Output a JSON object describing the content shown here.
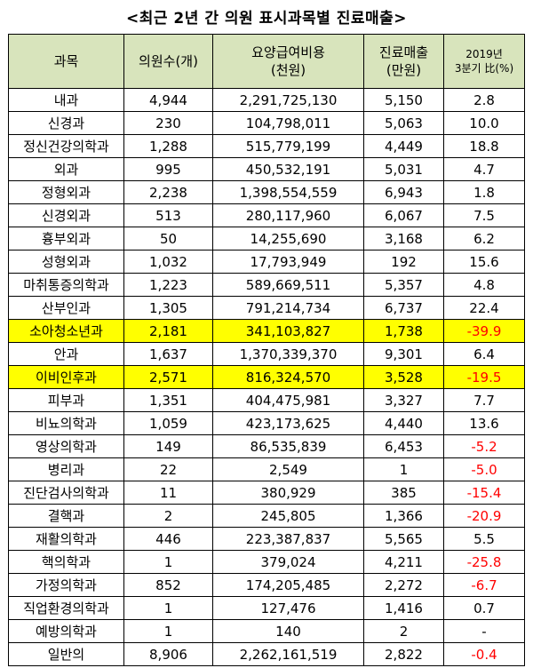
{
  "title": "<최근 2년 간 의원 표시과목별 진료매출>",
  "headers": {
    "dept": "과목",
    "clinics": "의원수(개)",
    "benefit_line1": "요양급여비용",
    "benefit_line2": "(천원)",
    "revenue_line1": "진료매출",
    "revenue_line2": "(만원)",
    "ratio_line1": "2019년",
    "ratio_line2": "3분기 比(%)"
  },
  "rows": [
    {
      "dept": "내과",
      "clinics": "4,944",
      "benefit": "2,291,725,130",
      "revenue": "5,150",
      "ratio": "2.8",
      "neg": false,
      "hl": false
    },
    {
      "dept": "신경과",
      "clinics": "230",
      "benefit": "104,798,011",
      "revenue": "5,063",
      "ratio": "10.0",
      "neg": false,
      "hl": false
    },
    {
      "dept": "정신건강의학과",
      "clinics": "1,288",
      "benefit": "515,779,199",
      "revenue": "4,449",
      "ratio": "18.8",
      "neg": false,
      "hl": false
    },
    {
      "dept": "외과",
      "clinics": "995",
      "benefit": "450,532,191",
      "revenue": "5,031",
      "ratio": "4.7",
      "neg": false,
      "hl": false
    },
    {
      "dept": "정형외과",
      "clinics": "2,238",
      "benefit": "1,398,554,559",
      "revenue": "6,943",
      "ratio": "1.8",
      "neg": false,
      "hl": false
    },
    {
      "dept": "신경외과",
      "clinics": "513",
      "benefit": "280,117,960",
      "revenue": "6,067",
      "ratio": "7.5",
      "neg": false,
      "hl": false
    },
    {
      "dept": "흉부외과",
      "clinics": "50",
      "benefit": "14,255,690",
      "revenue": "3,168",
      "ratio": "6.2",
      "neg": false,
      "hl": false
    },
    {
      "dept": "성형외과",
      "clinics": "1,032",
      "benefit": "17,793,949",
      "revenue": "192",
      "ratio": "15.6",
      "neg": false,
      "hl": false
    },
    {
      "dept": "마취통증의학과",
      "clinics": "1,223",
      "benefit": "589,669,511",
      "revenue": "5,357",
      "ratio": "4.8",
      "neg": false,
      "hl": false
    },
    {
      "dept": "산부인과",
      "clinics": "1,305",
      "benefit": "791,214,734",
      "revenue": "6,737",
      "ratio": "22.4",
      "neg": false,
      "hl": false
    },
    {
      "dept": "소아청소년과",
      "clinics": "2,181",
      "benefit": "341,103,827",
      "revenue": "1,738",
      "ratio": "-39.9",
      "neg": true,
      "hl": true
    },
    {
      "dept": "안과",
      "clinics": "1,637",
      "benefit": "1,370,339,370",
      "revenue": "9,301",
      "ratio": "6.4",
      "neg": false,
      "hl": false
    },
    {
      "dept": "이비인후과",
      "clinics": "2,571",
      "benefit": "816,324,570",
      "revenue": "3,528",
      "ratio": "-19.5",
      "neg": true,
      "hl": true
    },
    {
      "dept": "피부과",
      "clinics": "1,351",
      "benefit": "404,475,981",
      "revenue": "3,327",
      "ratio": "7.7",
      "neg": false,
      "hl": false
    },
    {
      "dept": "비뇨의학과",
      "clinics": "1,059",
      "benefit": "423,173,625",
      "revenue": "4,440",
      "ratio": "13.6",
      "neg": false,
      "hl": false
    },
    {
      "dept": "영상의학과",
      "clinics": "149",
      "benefit": "86,535,839",
      "revenue": "6,453",
      "ratio": "-5.2",
      "neg": true,
      "hl": false
    },
    {
      "dept": "병리과",
      "clinics": "22",
      "benefit": "2,549",
      "revenue": "1",
      "ratio": "-5.0",
      "neg": true,
      "hl": false
    },
    {
      "dept": "진단검사의학과",
      "clinics": "11",
      "benefit": "380,929",
      "revenue": "385",
      "ratio": "-15.4",
      "neg": true,
      "hl": false
    },
    {
      "dept": "결핵과",
      "clinics": "2",
      "benefit": "245,805",
      "revenue": "1,366",
      "ratio": "-20.9",
      "neg": true,
      "hl": false
    },
    {
      "dept": "재활의학과",
      "clinics": "446",
      "benefit": "223,387,837",
      "revenue": "5,565",
      "ratio": "5.5",
      "neg": false,
      "hl": false
    },
    {
      "dept": "핵의학과",
      "clinics": "1",
      "benefit": "379,024",
      "revenue": "4,211",
      "ratio": "-25.8",
      "neg": true,
      "hl": false
    },
    {
      "dept": "가정의학과",
      "clinics": "852",
      "benefit": "174,205,485",
      "revenue": "2,272",
      "ratio": "-6.7",
      "neg": true,
      "hl": false
    },
    {
      "dept": "직업환경의학과",
      "clinics": "1",
      "benefit": "127,476",
      "revenue": "1,416",
      "ratio": "0.7",
      "neg": false,
      "hl": false
    },
    {
      "dept": "예방의학과",
      "clinics": "1",
      "benefit": "140",
      "revenue": "2",
      "ratio": "-",
      "neg": false,
      "hl": false
    },
    {
      "dept": "일반의",
      "clinics": "8,906",
      "benefit": "2,262,161,519",
      "revenue": "2,822",
      "ratio": "-0.4",
      "neg": true,
      "hl": false
    }
  ],
  "colors": {
    "header_bg": "#d8e4bc",
    "highlight_bg": "#ffff00",
    "negative_text": "#ff0000"
  }
}
